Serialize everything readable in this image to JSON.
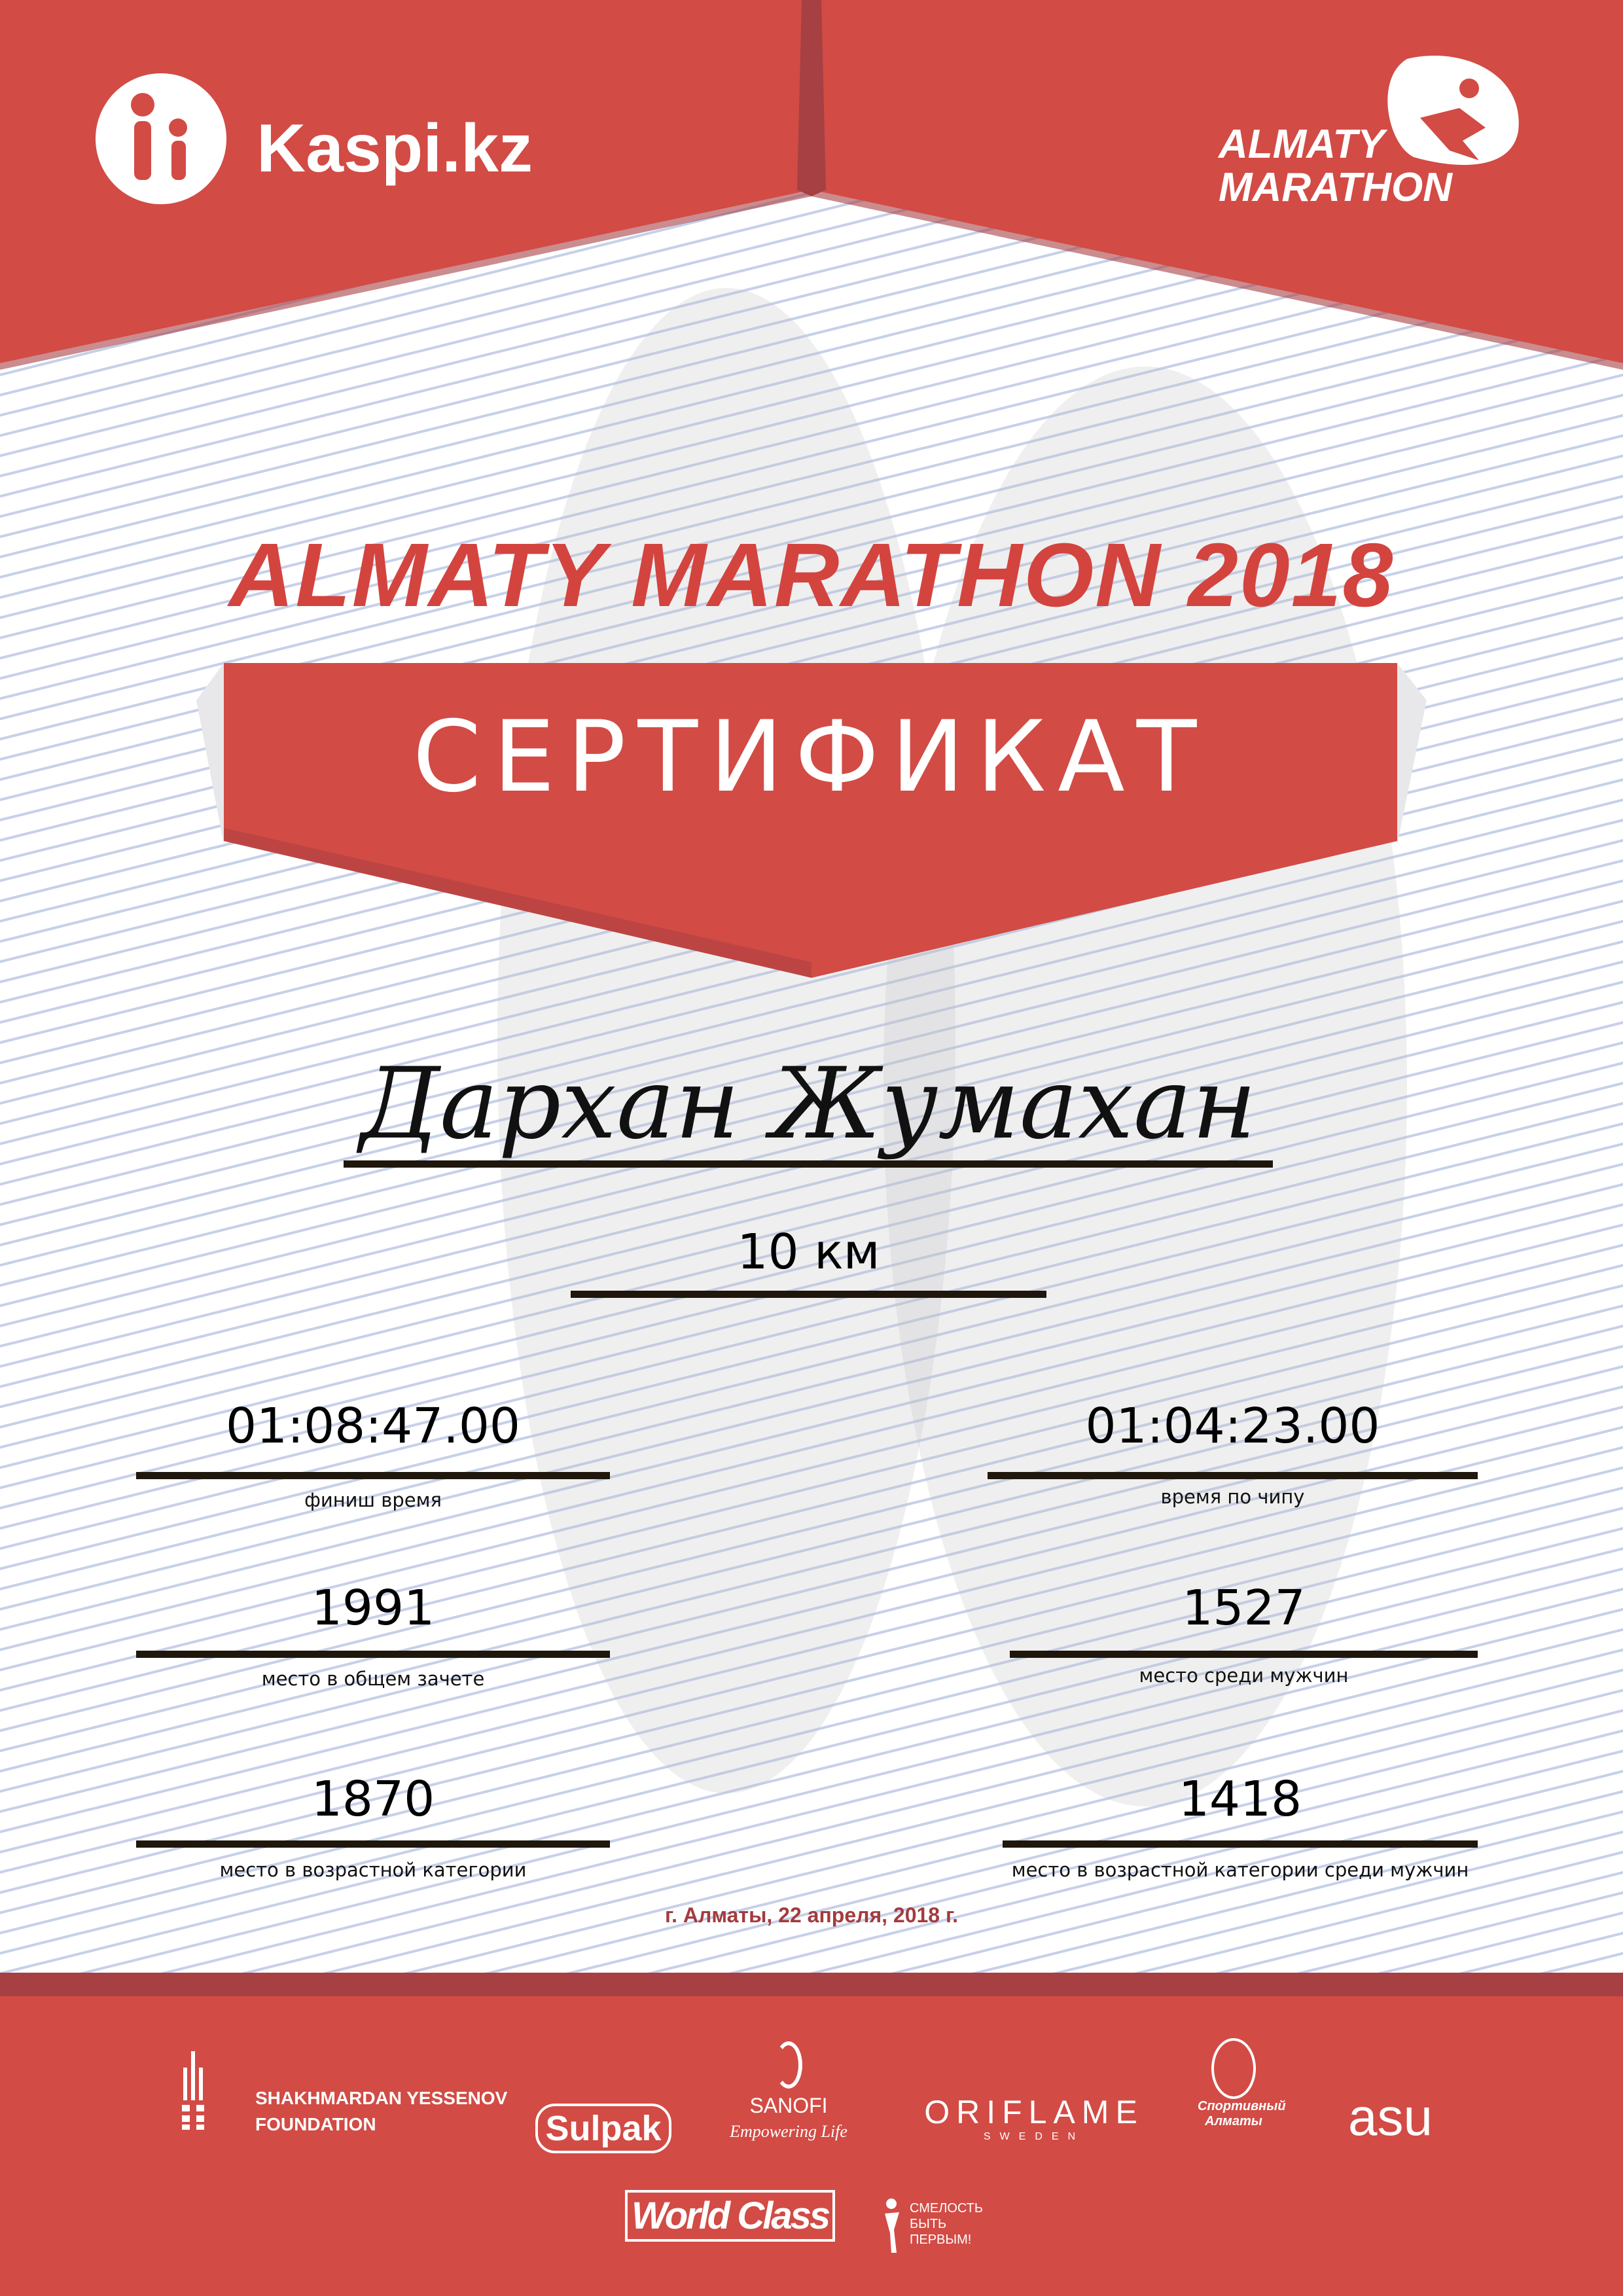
{
  "header": {
    "sponsor": "Kaspi.kz",
    "event_logo": [
      "ALMATY",
      "MARATHON"
    ]
  },
  "title": "ALMATY MARATHON 2018",
  "certificate_label": "СЕРТИФИКАТ",
  "participant_name": "Дархан Жумахан",
  "distance": "10 км",
  "results": [
    {
      "value": "01:08:47.00",
      "label": "финиш время"
    },
    {
      "value": "01:04:23.00",
      "label": "время по чипу"
    },
    {
      "value": "1991",
      "label": "место в общем зачете"
    },
    {
      "value": "1527",
      "label": "место среди мужчин"
    },
    {
      "value": "1870",
      "label": "место в возрастной категории"
    },
    {
      "value": "1418",
      "label": "место в возрастной категории среди мужчин"
    }
  ],
  "date": "г. Алматы, 22 апреля, 2018 г.",
  "partners": {
    "yessenov": [
      "SHAKHMARDAN YESSENOV",
      "FOUNDATION"
    ],
    "sulpak": "Sulpak",
    "sanofi": [
      "SANOFI",
      "Empowering Life"
    ],
    "oriflame": [
      "ORIFLAME",
      "SWEDEN"
    ],
    "sport_almaty": [
      "Спортивный",
      "Алматы"
    ],
    "asu": "asu",
    "worldclass": "World Class",
    "smelost": [
      "СМЕЛОСТЬ",
      "БЫТЬ",
      "ПЕРВЫМ!"
    ]
  },
  "colors": {
    "brand_red": "#d24b45",
    "dark_red": "#a64042",
    "date_red": "#a33b3e",
    "line_blue": "#c6d0ea"
  }
}
